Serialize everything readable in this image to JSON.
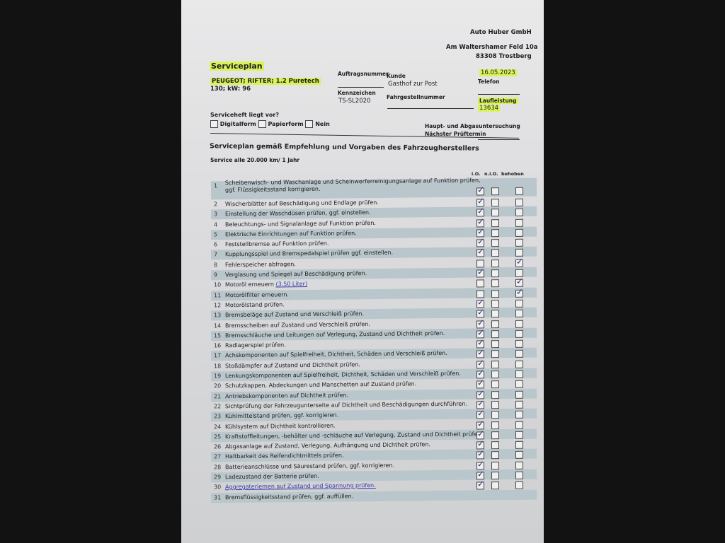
{
  "company": {
    "name": "Auto Huber GmbH",
    "street": "Am Waltershamer Feld 10a",
    "city": "83308 Trostberg"
  },
  "title": "Serviceplan",
  "vehicle": {
    "line1": "PEUGEOT; RIFTER; 1.2 Puretech",
    "line2": "130; kW: 96"
  },
  "fields": {
    "auftragsnummer_label": "Auftragsnummer",
    "auftragsnummer": "",
    "kunde_label": "Kunde",
    "kunde": "Gasthof zur Post",
    "date": "16.05.2023",
    "telefon_label": "Telefon",
    "telefon": "",
    "kennzeichen_label": "Kennzeichen",
    "kennzeichen": "TS-SL2020",
    "fahrgestell_label": "Fahrgestellnummer",
    "fahrgestell": "",
    "laufleistung_label": "Laufleistung",
    "laufleistung": "13634",
    "hu_label": "Haupt- und Abgasuntersuchung",
    "pruef_label": "Nächster Prüftermin"
  },
  "serviceheft": {
    "question": "Serviceheft liegt vor?",
    "options": [
      {
        "label": "Digitalform",
        "checked": false
      },
      {
        "label": "Papierform",
        "checked": false
      },
      {
        "label": "Nein",
        "checked": false
      }
    ]
  },
  "plan_heading": "Serviceplan gemäß Empfehlung und Vorgaben des Fahrzeugherstellers",
  "interval": "Service alle 20.000 km/ 1 Jahr",
  "columns": [
    "i.O.",
    "n.i.O.",
    "behoben"
  ],
  "items": [
    {
      "n": "1",
      "text": "Scheibenwisch- und Waschanlage und Scheinwerferreinigungsanlage auf Funktion prüfen,",
      "text2": "ggf. Flüssigkeitsstand korrigieren.",
      "state": "io"
    },
    {
      "n": "2",
      "text": "Wischerblätter auf Beschädigung und Endlage prüfen.",
      "state": "io"
    },
    {
      "n": "3",
      "text": "Einstellung der Waschdüsen prüfen, ggf. einstellen.",
      "state": "io"
    },
    {
      "n": "4",
      "text": "Beleuchtungs- und Signalanlage auf Funktion prüfen.",
      "state": "io"
    },
    {
      "n": "5",
      "text": "Elektrische Einrichtungen auf Funktion prüfen.",
      "state": "io"
    },
    {
      "n": "6",
      "text": "Feststellbremse auf Funktion prüfen.",
      "state": "io"
    },
    {
      "n": "7",
      "text": "Kupplungsspiel und Bremspedalspiel prüfen ggf. einstellen.",
      "state": "io"
    },
    {
      "n": "8",
      "text": "Fehlerspeicher abfragen.",
      "state": "behoben"
    },
    {
      "n": "9",
      "text": "Verglasung und Spiegel auf Beschädigung prüfen.",
      "state": "io"
    },
    {
      "n": "10",
      "text": "Motoröl erneuern",
      "link": "(3.50 Liter)",
      "state": "behoben"
    },
    {
      "n": "11",
      "text": "Motorölfilter erneuern.",
      "state": "behoben"
    },
    {
      "n": "12",
      "text": "Motorölstand prüfen.",
      "state": "io"
    },
    {
      "n": "13",
      "text": "Bremsbeläge auf Zustand und Verschleiß prüfen.",
      "state": "io"
    },
    {
      "n": "14",
      "text": "Bremsscheiben auf Zustand und Verschleiß prüfen.",
      "state": "io"
    },
    {
      "n": "15",
      "text": "Bremsschläuche und Leitungen auf Verlegung, Zustand und Dichtheit prüfen.",
      "state": "io"
    },
    {
      "n": "16",
      "text": "Radlagerspiel prüfen.",
      "state": "io"
    },
    {
      "n": "17",
      "text": "Achskomponenten auf Spielfreiheit, Dichtheit, Schäden und Verschleiß prüfen.",
      "state": "io"
    },
    {
      "n": "18",
      "text": "Stoßdämpfer auf Zustand und Dichtheit prüfen.",
      "state": "io"
    },
    {
      "n": "19",
      "text": "Lenkungskomponenten auf Spielfreiheit, Dichtheit, Schäden und Verschleiß prüfen.",
      "state": "io"
    },
    {
      "n": "20",
      "text": "Schutzkappen, Abdeckungen und Manschetten auf Zustand prüfen.",
      "state": "io"
    },
    {
      "n": "21",
      "text": "Antriebskomponenten auf Dichtheit prüfen.",
      "state": "io"
    },
    {
      "n": "22",
      "text": "Sichtprüfung der Fahrzeugunterseite auf Dichtheit und Beschädigungen durchführen.",
      "state": "io"
    },
    {
      "n": "23",
      "text": "Kühlmittelstand prüfen, ggf. korrigieren.",
      "state": "io"
    },
    {
      "n": "24",
      "text": "Kühlsystem auf Dichtheit kontrollieren.",
      "state": "io"
    },
    {
      "n": "25",
      "text": "Kraftstoffleitungen, -behälter und -schläuche auf Verlegung, Zustand und Dichtheit prüfen.",
      "state": "io"
    },
    {
      "n": "26",
      "text": "Abgasanlage auf Zustand, Verlegung, Aufhängung und Dichtheit prüfen.",
      "state": "io"
    },
    {
      "n": "27",
      "text": "Haltbarkeit des Reifendichtmittels prüfen.",
      "state": "io"
    },
    {
      "n": "28",
      "text": "Batterieanschlüsse und Säurestand prüfen, ggf. korrigieren.",
      "state": "io"
    },
    {
      "n": "29",
      "text": "Ladezustand der Batterie prüfen.",
      "state": "io"
    },
    {
      "n": "30",
      "text": "",
      "link": "Aggregateriemen auf Zustand und Spannung prüfen.",
      "state": "io"
    },
    {
      "n": "31",
      "text": "Bremsflüssigkeitsstand prüfen, ggf. auffüllen.",
      "state": "none"
    }
  ]
}
